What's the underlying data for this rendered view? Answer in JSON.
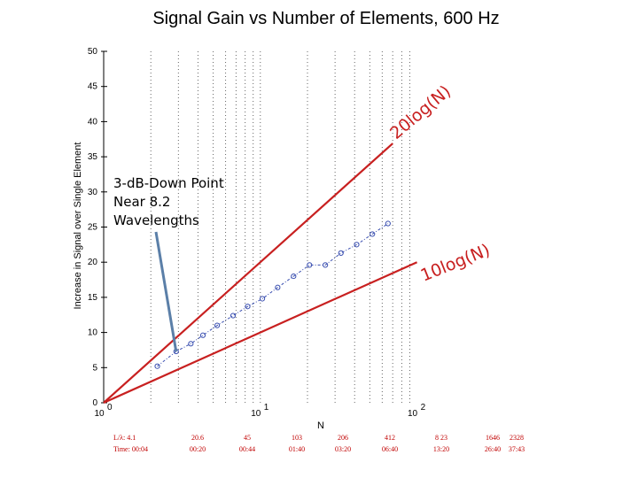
{
  "chart_data": {
    "type": "line",
    "title": "Signal Gain vs Number of Elements, 600 Hz",
    "xlabel": "N",
    "ylabel": "Increase in Signal over Single Element",
    "xscale": "log",
    "xlim": [
      1,
      100
    ],
    "ylim": [
      0,
      50
    ],
    "yticks": [
      0,
      5,
      10,
      15,
      20,
      25,
      30,
      35,
      40,
      45,
      50
    ],
    "xticks": [
      {
        "base": "10",
        "exp": "0",
        "value": 1
      },
      {
        "base": "10",
        "exp": "1",
        "value": 10
      },
      {
        "base": "10",
        "exp": "2",
        "value": 100
      }
    ],
    "grid": "dotted",
    "series": [
      {
        "name": "20log(N)",
        "color": "#c82020",
        "style": "solid",
        "formula": "20log10(N)",
        "x": [
          1,
          70
        ],
        "y": [
          0,
          36.9
        ]
      },
      {
        "name": "10log(N)",
        "color": "#c82020",
        "style": "solid",
        "formula": "10log10(N)",
        "x": [
          1,
          100
        ],
        "y": [
          0,
          20
        ]
      },
      {
        "name": "",
        "color": "#3a4fb0",
        "style": "dashdot",
        "x": [
          2.2,
          2.9,
          3.6,
          4.3,
          5.3,
          6.7,
          8.3,
          10.3,
          12.9,
          16.3,
          20.6,
          26,
          32.7,
          41.2,
          51.9,
          65.3
        ],
        "y": [
          5.2,
          7.3,
          8.4,
          9.6,
          11.0,
          12.4,
          13.7,
          14.8,
          16.4,
          18.0,
          19.6,
          19.6,
          21.3,
          22.5,
          24.0,
          25.5
        ]
      }
    ],
    "annotation": {
      "lines": [
        "3-dB-Down Point",
        "Near 8.2",
        "Wavelengths"
      ],
      "arrow_to": {
        "x": 2.9,
        "y": 7.3
      }
    },
    "bottom_labels": {
      "row1_prefix": "L/λ: 4.1",
      "row2_prefix": "Time: 00:04",
      "columns": [
        {
          "top": "20.6",
          "bottom": "00:20"
        },
        {
          "top": "45",
          "bottom": "00:44"
        },
        {
          "top": "103",
          "bottom": "01:40"
        },
        {
          "top": "206",
          "bottom": "03:20"
        },
        {
          "top": "412",
          "bottom": "06:40"
        },
        {
          "top": "8 23",
          "bottom": "13:20"
        },
        {
          "top": "1646",
          "bottom": "26:40"
        },
        {
          "top": "2328",
          "bottom": "37:43"
        }
      ]
    }
  },
  "colors": {
    "reference_line": "#c82020",
    "measured_line": "#3a4fb0",
    "bottom_text": "#c00000",
    "annotation_arrow": "#5b7fa8"
  }
}
